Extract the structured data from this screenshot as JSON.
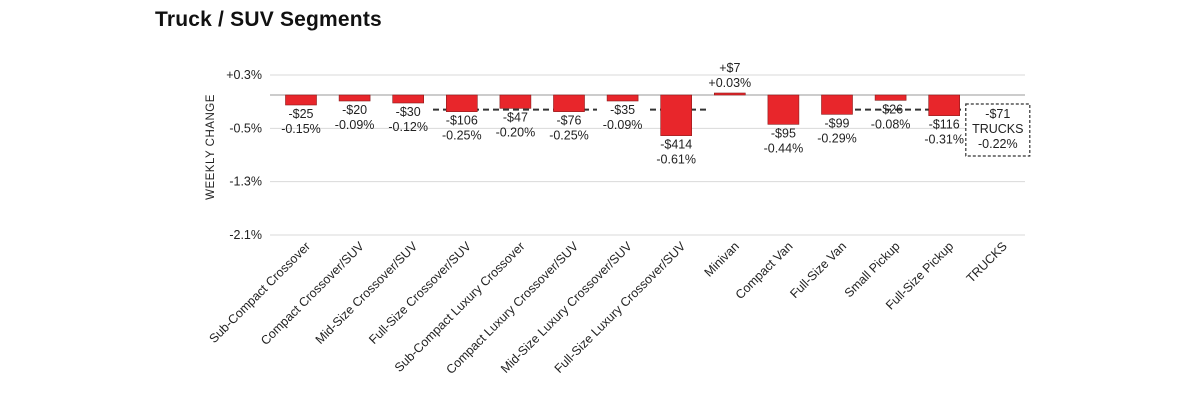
{
  "page": {
    "title": "Truck / SUV Segments"
  },
  "colors": {
    "bar_fill": "#e8262b",
    "bar_stroke": "#8b1a1a",
    "avg_line": "#333333",
    "grid": "#d9d9d9",
    "text": "#222222"
  },
  "chart_data": {
    "type": "bar",
    "title": "Truck / SUV Segments",
    "xlabel": "",
    "ylabel": "WEEKLY CHANGE",
    "ylim": [
      -2.1,
      0.3
    ],
    "yticks": [
      0.3,
      -0.5,
      -1.3,
      -2.1
    ],
    "ytick_labels": [
      "+0.3%",
      "-0.5%",
      "-1.3%",
      "-2.1%"
    ],
    "grid": true,
    "categories": [
      "Sub-Compact Crossover",
      "Compact Crossover/SUV",
      "Mid-Size Crossover/SUV",
      "Full-Size Crossover/SUV",
      "Sub-Compact Luxury Crossover",
      "Compact Luxury Crossover/SUV",
      "Mid-Size Luxury Crossover/SUV",
      "Full-Size Luxury Crossover/SUV",
      "Minivan",
      "Compact Van",
      "Full-Size Van",
      "Small Pickup",
      "Full-Size Pickup",
      "TRUCKS"
    ],
    "values": [
      -0.15,
      -0.09,
      -0.12,
      -0.25,
      -0.2,
      -0.25,
      -0.09,
      -0.61,
      0.03,
      -0.44,
      -0.29,
      -0.08,
      -0.31,
      -0.22
    ],
    "dollar_labels": [
      "-$25",
      "-$20",
      "-$30",
      "-$106",
      "-$47",
      "-$76",
      "-$35",
      "-$414",
      "+$7",
      "-$95",
      "-$99",
      "-$26",
      "-$116",
      "-$71"
    ],
    "percent_labels": [
      "-0.15%",
      "-0.09%",
      "-0.12%",
      "-0.25%",
      "-0.20%",
      "-0.25%",
      "-0.09%",
      "-0.61%",
      "+0.03%",
      "-0.44%",
      "-0.29%",
      "-0.08%",
      "-0.31%",
      "-0.22%"
    ],
    "summary": {
      "index": 13,
      "dollar": "-$71",
      "label": "TRUCKS",
      "percent": "-0.22%",
      "value": -0.22
    },
    "average_line": {
      "value": -0.22,
      "style": "dashed"
    }
  }
}
